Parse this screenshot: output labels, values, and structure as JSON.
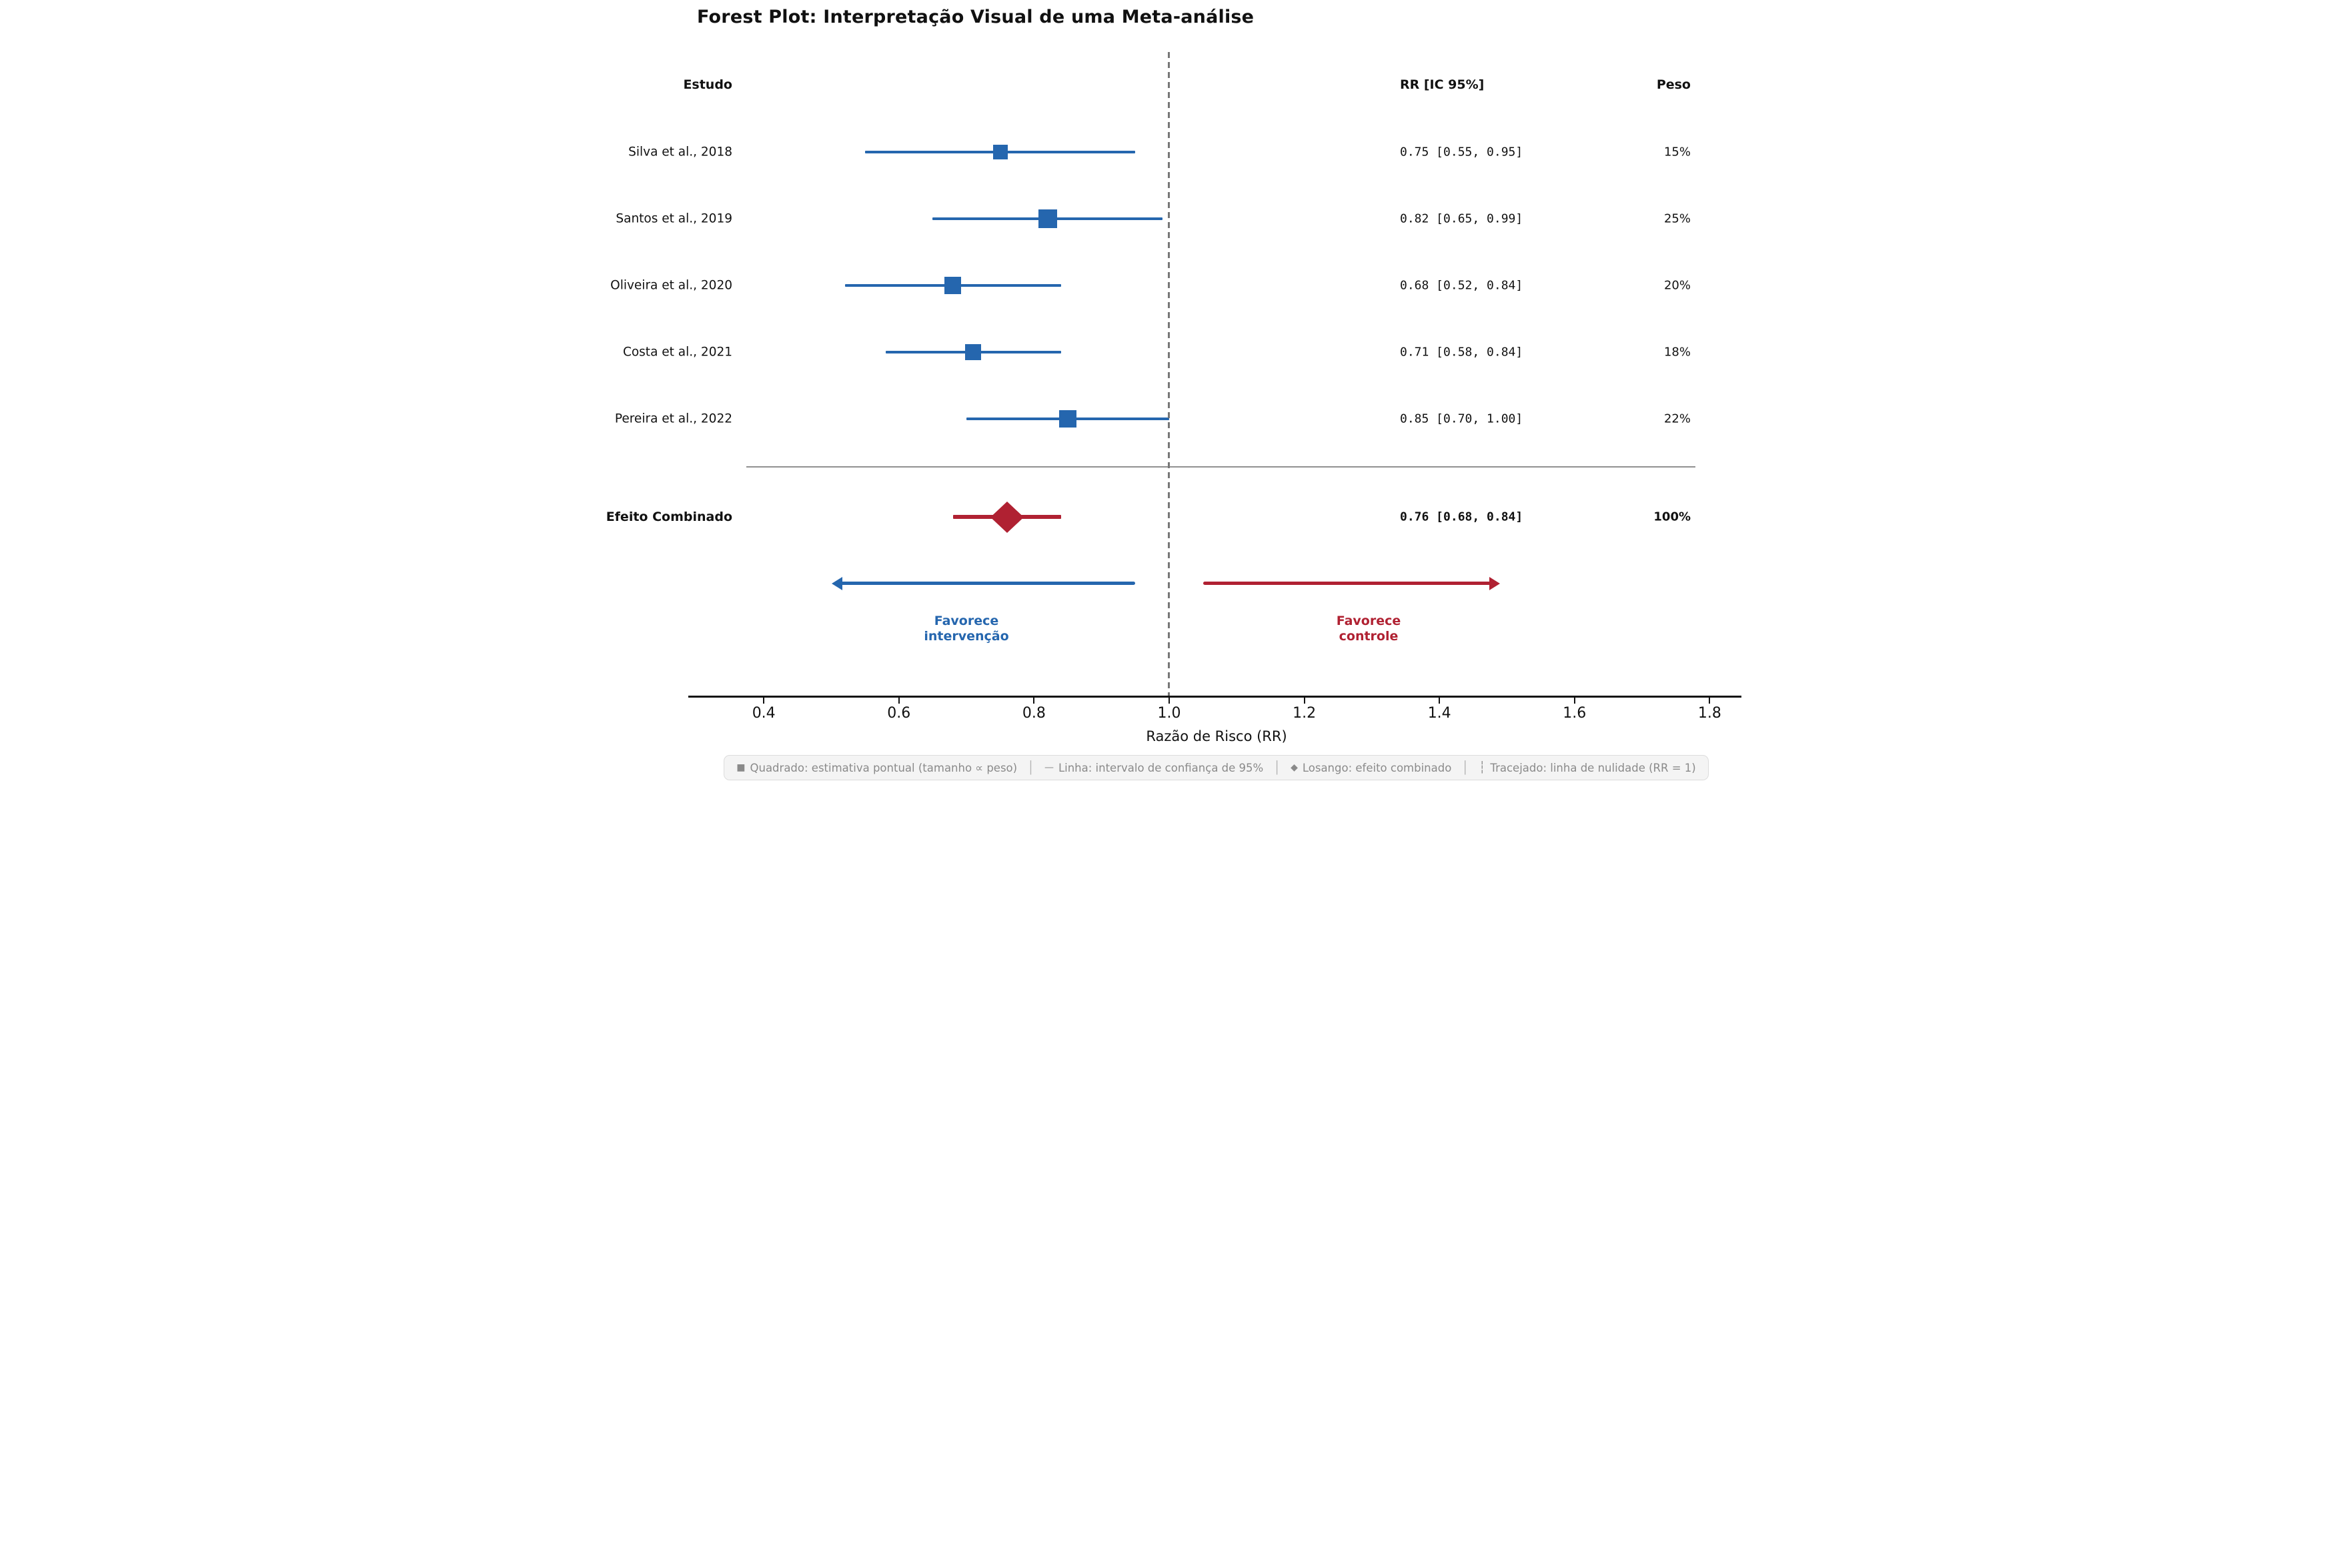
{
  "title": "Forest Plot: Interpretação Visual de uma Meta-análise",
  "columns": {
    "estudo": "Estudo",
    "rr": "RR [IC 95%]",
    "peso": "Peso"
  },
  "colors": {
    "blue": "#2566ae",
    "red": "#b02132",
    "gray_text": "#8a8a8a",
    "dashed_line": "#777777",
    "separator": "#909090",
    "legend_bg": "#f4f4f4",
    "legend_border": "#dcdcdc"
  },
  "chart_data": {
    "type": "scatter",
    "subtype": "forest_plot",
    "title": "Forest Plot: Interpretação Visual de uma Meta-análise",
    "xlabel": "Razão de Risco (RR)",
    "xlim": [
      0.3,
      1.85
    ],
    "xticks": [
      0.4,
      0.6,
      0.8,
      1.0,
      1.2,
      1.4,
      1.6,
      1.8
    ],
    "null_line_rr": 1.0,
    "grid": false,
    "studies": [
      {
        "label": "Silva et al., 2018",
        "rr": 0.75,
        "ci_low": 0.55,
        "ci_high": 0.95,
        "weight_pct": 15,
        "rr_label": "0.75 [0.55, 0.95]",
        "weight_label": "15%"
      },
      {
        "label": "Santos et al., 2019",
        "rr": 0.82,
        "ci_low": 0.65,
        "ci_high": 0.99,
        "weight_pct": 25,
        "rr_label": "0.82 [0.65, 0.99]",
        "weight_label": "25%"
      },
      {
        "label": "Oliveira et al., 2020",
        "rr": 0.68,
        "ci_low": 0.52,
        "ci_high": 0.84,
        "weight_pct": 20,
        "rr_label": "0.68 [0.52, 0.84]",
        "weight_label": "20%"
      },
      {
        "label": "Costa et al., 2021",
        "rr": 0.71,
        "ci_low": 0.58,
        "ci_high": 0.84,
        "weight_pct": 18,
        "rr_label": "0.71 [0.58, 0.84]",
        "weight_label": "18%"
      },
      {
        "label": "Pereira et al., 2022",
        "rr": 0.85,
        "ci_low": 0.7,
        "ci_high": 1.0,
        "weight_pct": 22,
        "rr_label": "0.85 [0.70, 1.00]",
        "weight_label": "22%"
      }
    ],
    "combined": {
      "label": "Efeito Combinado",
      "rr": 0.76,
      "ci_low": 0.68,
      "ci_high": 0.84,
      "weight_pct": 100,
      "rr_label": "0.76 [0.68, 0.84]",
      "weight_label": "100%"
    },
    "arrows": {
      "left": {
        "from_rr": 0.95,
        "to_rr": 0.5,
        "label": "Favorece\nintervenção",
        "color": "blue"
      },
      "right": {
        "from_rr": 1.05,
        "to_rr": 1.49,
        "label": "Favorece\ncontrole",
        "color": "red"
      }
    }
  },
  "legend": {
    "separator": "│",
    "items": [
      {
        "icon": "■",
        "text": "Quadrado: estimativa pontual (tamanho ∝ peso)"
      },
      {
        "icon": "—",
        "text": "Linha: intervalo de confiança de 95%"
      },
      {
        "icon": "◆",
        "text": "Losango: efeito combinado"
      },
      {
        "icon": "┆",
        "text": "Tracejado: linha de nulidade (RR = 1)"
      }
    ]
  }
}
